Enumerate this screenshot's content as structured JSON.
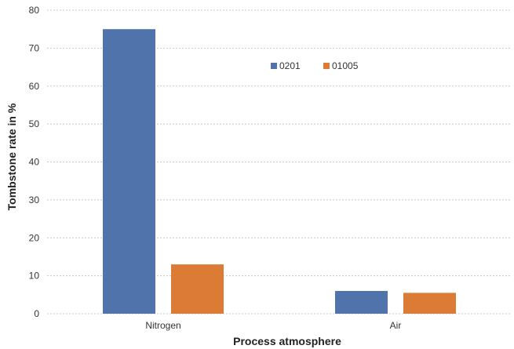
{
  "chart_data": {
    "type": "bar",
    "categories": [
      "Nitrogen",
      "Air"
    ],
    "series": [
      {
        "name": "0201",
        "values": [
          75,
          6
        ],
        "color": "#4f73aa"
      },
      {
        "name": "01005",
        "values": [
          13,
          5.5
        ],
        "color": "#dc7b35"
      }
    ],
    "xlabel": "Process atmosphere",
    "ylabel": "Tombstone rate in %",
    "ylim": [
      0,
      80
    ],
    "yticks": [
      0,
      10,
      20,
      30,
      40,
      50,
      60,
      70,
      80
    ],
    "grid": true,
    "legend_position": "top-right"
  }
}
